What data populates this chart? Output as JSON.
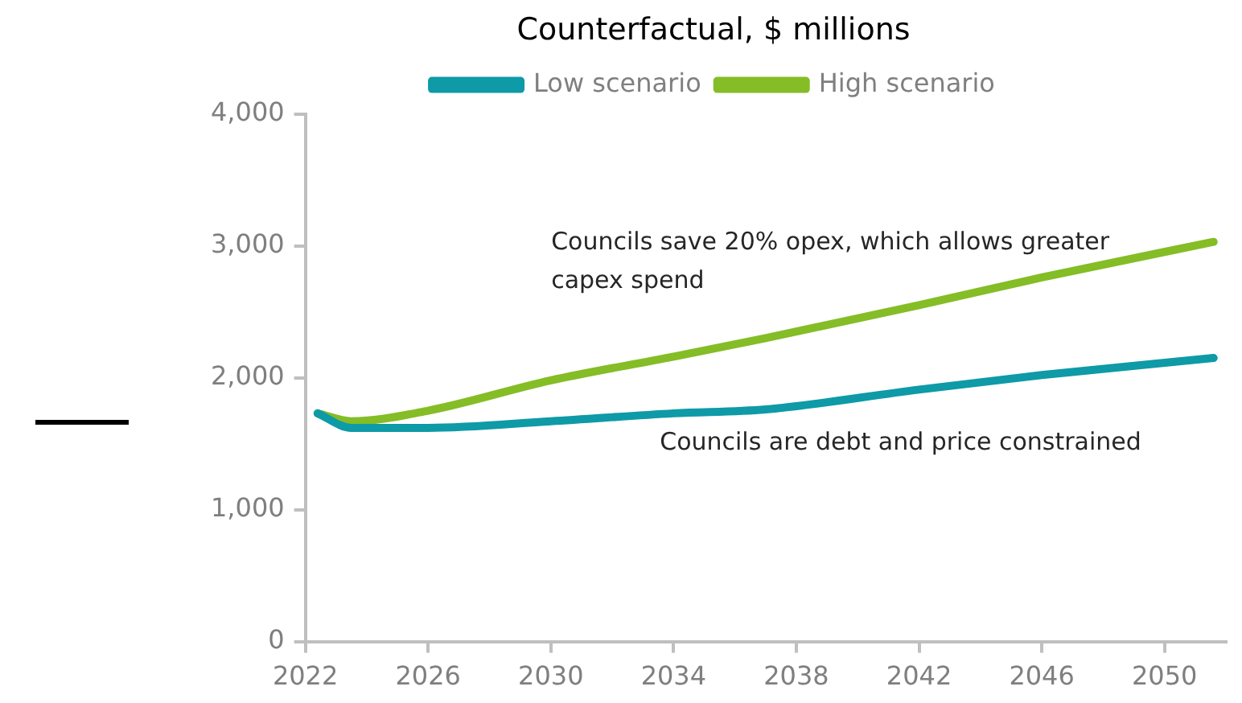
{
  "chart_data": {
    "type": "line",
    "title": "Counterfactual, $ millions",
    "xlim": [
      2022,
      2052
    ],
    "xticks": [
      2022,
      2026,
      2030,
      2034,
      2038,
      2042,
      2046,
      2050
    ],
    "ylim": [
      0,
      4000
    ],
    "yticks": [
      {
        "value": 0,
        "label": "0"
      },
      {
        "value": 1000,
        "label": "1,000"
      },
      {
        "value": 2000,
        "label": "2,000"
      },
      {
        "value": 3000,
        "label": "3,000"
      },
      {
        "value": 4000,
        "label": "4,000"
      }
    ],
    "grid": false,
    "legend": "top",
    "marker": "none",
    "line_style": "solid",
    "series": [
      {
        "name": "Low scenario",
        "color": "#0e9aa7",
        "x": [
          2022.4,
          2023.5,
          2026,
          2030,
          2034,
          2037,
          2042,
          2046,
          2051.6
        ],
        "values": [
          1730,
          1620,
          1620,
          1670,
          1730,
          1760,
          1910,
          2020,
          2150
        ]
      },
      {
        "name": "High scenario",
        "color": "#84bd26",
        "x": [
          2022.4,
          2023.5,
          2026,
          2030,
          2034,
          2037,
          2042,
          2046,
          2051.6
        ],
        "values": [
          1730,
          1670,
          1750,
          1980,
          2160,
          2300,
          2550,
          2760,
          3030
        ]
      }
    ],
    "annotations": [
      "Councils save 20% opex, which allows greater capex spend",
      "Councils are debt and price constrained"
    ]
  }
}
